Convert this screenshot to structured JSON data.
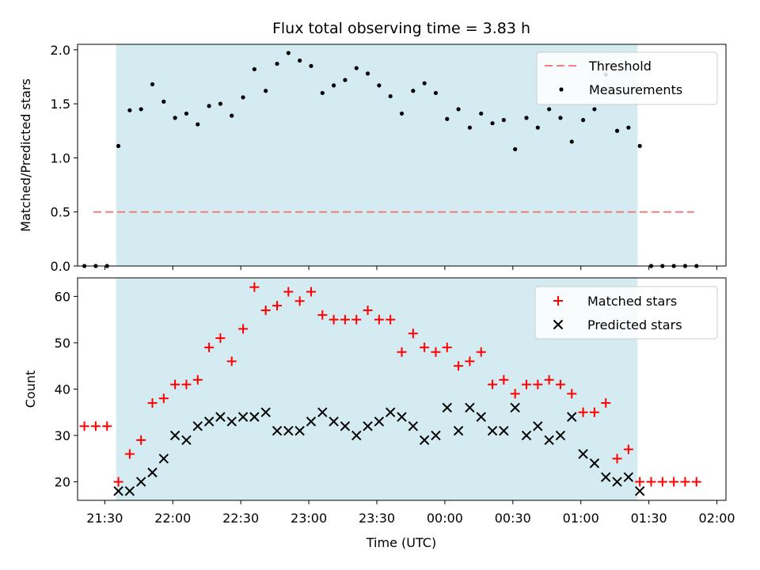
{
  "chart_data": {
    "type": "scatter",
    "title": "Flux total observing time = 3.83 h",
    "xlabel": "Time (UTC)",
    "x_ticks": [
      "21:30",
      "22:00",
      "22:30",
      "23:00",
      "23:30",
      "00:00",
      "00:30",
      "01:00",
      "01:30",
      "02:00"
    ],
    "x_range": [
      "21:18",
      "02:04"
    ],
    "observing_window": [
      "21:35",
      "01:25"
    ],
    "window_color": "#d3ebf1",
    "times": [
      "21:21",
      "21:26",
      "21:31",
      "21:36",
      "21:41",
      "21:46",
      "21:51",
      "21:56",
      "22:01",
      "22:06",
      "22:11",
      "22:16",
      "22:21",
      "22:26",
      "22:31",
      "22:36",
      "22:41",
      "22:46",
      "22:51",
      "22:56",
      "23:01",
      "23:06",
      "23:11",
      "23:16",
      "23:21",
      "23:26",
      "23:31",
      "23:36",
      "23:41",
      "23:46",
      "23:51",
      "23:56",
      "00:01",
      "00:06",
      "00:11",
      "00:16",
      "00:21",
      "00:26",
      "00:31",
      "00:36",
      "00:41",
      "00:46",
      "00:51",
      "00:56",
      "01:01",
      "01:06",
      "01:11",
      "01:16",
      "01:21",
      "01:26",
      "01:31",
      "01:36",
      "01:41",
      "01:46",
      "01:51"
    ],
    "panels": [
      {
        "ylabel": "Matched/Predicted stars",
        "ylim": [
          0,
          2.05
        ],
        "y_ticks": [
          "0.0",
          "0.5",
          "1.0",
          "1.5",
          "2.0"
        ],
        "legend_position": "top-right",
        "threshold": {
          "name": "Threshold",
          "value": 0.5,
          "x_start": "21:25",
          "x_end": "01:50",
          "color": "#f08080"
        },
        "series": [
          {
            "name": "Measurements",
            "marker": "dot",
            "color": "#000000",
            "x_start_index": 0,
            "values": [
              0,
              0,
              0,
              1.11,
              1.44,
              1.45,
              1.68,
              1.52,
              1.37,
              1.41,
              1.31,
              1.48,
              1.5,
              1.39,
              1.56,
              1.82,
              1.62,
              1.87,
              1.97,
              1.9,
              1.85,
              1.6,
              1.67,
              1.72,
              1.83,
              1.78,
              1.67,
              1.57,
              1.41,
              1.62,
              1.69,
              1.6,
              1.36,
              1.45,
              1.28,
              1.41,
              1.32,
              1.35,
              1.08,
              1.37,
              1.28,
              1.45,
              1.37,
              1.15,
              1.35,
              1.45,
              1.77,
              1.25,
              1.28,
              1.11,
              0,
              0,
              0,
              0,
              0
            ]
          }
        ]
      },
      {
        "ylabel": "Count",
        "ylim": [
          16,
          64
        ],
        "y_ticks": [
          "20",
          "30",
          "40",
          "50",
          "60"
        ],
        "legend_position": "top-right",
        "series": [
          {
            "name": "Matched stars",
            "marker": "plus",
            "color": "#ff0000",
            "x_start_index": 0,
            "values": [
              32,
              32,
              32,
              20,
              26,
              29,
              37,
              38,
              41,
              41,
              42,
              49,
              51,
              46,
              53,
              62,
              57,
              58,
              61,
              59,
              61,
              56,
              55,
              55,
              55,
              57,
              55,
              55,
              48,
              52,
              49,
              48,
              49,
              45,
              46,
              48,
              41,
              42,
              39,
              41,
              41,
              42,
              41,
              39,
              35,
              35,
              37,
              25,
              27,
              20,
              20,
              20,
              20,
              20,
              20
            ]
          },
          {
            "name": "Predicted stars",
            "marker": "x",
            "color": "#000000",
            "x_start_index": 3,
            "values": [
              18,
              18,
              20,
              22,
              25,
              30,
              29,
              32,
              33,
              34,
              33,
              34,
              34,
              35,
              31,
              31,
              31,
              33,
              35,
              33,
              32,
              30,
              32,
              33,
              35,
              34,
              32,
              29,
              30,
              36,
              31,
              36,
              34,
              31,
              31,
              36,
              30,
              32,
              29,
              30,
              34,
              26,
              24,
              21,
              20,
              21,
              18
            ]
          }
        ]
      }
    ]
  }
}
